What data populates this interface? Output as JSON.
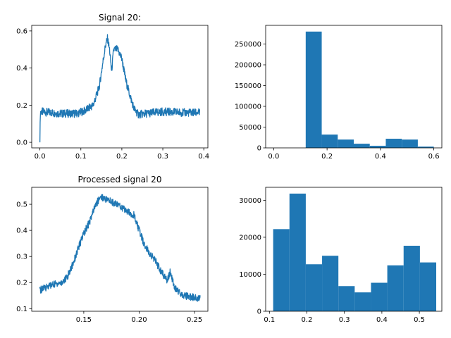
{
  "chart_data": [
    {
      "type": "line",
      "title": "Signal 20:",
      "xlabel": "",
      "ylabel": "",
      "xlim": [
        -0.02,
        0.41
      ],
      "ylim": [
        -0.03,
        0.63
      ],
      "xticks": [
        0.0,
        0.1,
        0.2,
        0.3,
        0.4
      ],
      "xtick_labels": [
        "0.0",
        "0.1",
        "0.2",
        "0.3",
        "0.4"
      ],
      "yticks": [
        0.0,
        0.2,
        0.4,
        0.6
      ],
      "ytick_labels": [
        "0.0",
        "0.2",
        "0.4",
        "0.6"
      ],
      "color": "#1f77b4",
      "x": [
        0.0,
        0.001,
        0.002,
        0.05,
        0.09,
        0.11,
        0.13,
        0.145,
        0.155,
        0.16,
        0.165,
        0.17,
        0.175,
        0.18,
        0.19,
        0.2,
        0.21,
        0.22,
        0.23,
        0.24,
        0.26,
        0.3,
        0.35,
        0.39
      ],
      "y": [
        0.0,
        0.16,
        0.165,
        0.155,
        0.155,
        0.17,
        0.2,
        0.3,
        0.45,
        0.52,
        0.56,
        0.5,
        0.38,
        0.5,
        0.5,
        0.45,
        0.33,
        0.25,
        0.18,
        0.15,
        0.155,
        0.165,
        0.16,
        0.16
      ]
    },
    {
      "type": "bar",
      "title": "",
      "xlabel": "",
      "ylabel": "",
      "xlim": [
        -0.03,
        0.63
      ],
      "ylim": [
        0,
        295000
      ],
      "xticks": [
        0.0,
        0.2,
        0.4,
        0.6
      ],
      "xtick_labels": [
        "0.0",
        "0.2",
        "0.4",
        "0.6"
      ],
      "yticks": [
        0,
        50000,
        100000,
        150000,
        200000,
        250000
      ],
      "ytick_labels": [
        "0",
        "50000",
        "100000",
        "150000",
        "200000",
        "250000"
      ],
      "color": "#1f77b4",
      "bin_edges": [
        0.0,
        0.06,
        0.12,
        0.18,
        0.24,
        0.3,
        0.36,
        0.42,
        0.48,
        0.54,
        0.6
      ],
      "values": [
        0,
        0,
        280000,
        32000,
        20000,
        10000,
        5000,
        22000,
        20000,
        3000
      ]
    },
    {
      "type": "line",
      "title": "Processed signal 20",
      "xlabel": "",
      "ylabel": "",
      "xlim": [
        0.103,
        0.262
      ],
      "ylim": [
        0.09,
        0.565
      ],
      "xticks": [
        0.15,
        0.2,
        0.25
      ],
      "xtick_labels": [
        "0.15",
        "0.20",
        "0.25"
      ],
      "yticks": [
        0.1,
        0.2,
        0.3,
        0.4,
        0.5
      ],
      "ytick_labels": [
        "0.1",
        "0.2",
        "0.3",
        "0.4",
        "0.5"
      ],
      "color": "#1f77b4",
      "x": [
        0.11,
        0.12,
        0.13,
        0.135,
        0.14,
        0.145,
        0.15,
        0.155,
        0.16,
        0.165,
        0.17,
        0.18,
        0.19,
        0.195,
        0.2,
        0.205,
        0.21,
        0.215,
        0.22,
        0.225,
        0.228,
        0.232,
        0.24,
        0.255
      ],
      "y": [
        0.17,
        0.19,
        0.2,
        0.22,
        0.27,
        0.33,
        0.39,
        0.43,
        0.49,
        0.53,
        0.52,
        0.5,
        0.47,
        0.46,
        0.4,
        0.34,
        0.31,
        0.28,
        0.24,
        0.21,
        0.24,
        0.18,
        0.15,
        0.14
      ]
    },
    {
      "type": "bar",
      "title": "",
      "xlabel": "",
      "ylabel": "",
      "xlim": [
        0.09,
        0.56
      ],
      "ylim": [
        0,
        33500
      ],
      "xticks": [
        0.1,
        0.2,
        0.3,
        0.4,
        0.5
      ],
      "xtick_labels": [
        "0.1",
        "0.2",
        "0.3",
        "0.4",
        "0.5"
      ],
      "yticks": [
        0,
        10000,
        20000,
        30000
      ],
      "ytick_labels": [
        "0",
        "10000",
        "20000",
        "30000"
      ],
      "color": "#1f77b4",
      "bin_edges": [
        0.11,
        0.1535,
        0.197,
        0.2405,
        0.284,
        0.3275,
        0.371,
        0.4145,
        0.458,
        0.5015,
        0.545
      ],
      "values": [
        22200,
        31800,
        12700,
        15000,
        6800,
        5100,
        7700,
        12400,
        17700,
        13200
      ]
    }
  ]
}
